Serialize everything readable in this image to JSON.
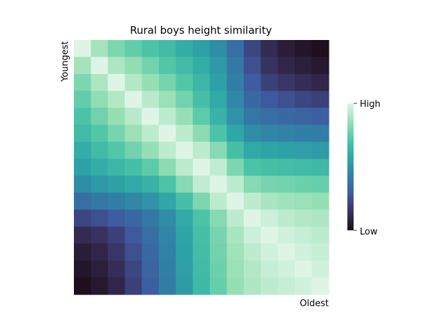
{
  "chart_data": {
    "type": "heatmap",
    "title": "Rural boys height similarity",
    "ylabel": "Youngest",
    "xlabel": "Oldest",
    "rows": 15,
    "cols": 15,
    "values": [
      [
        1.0,
        0.88,
        0.8,
        0.75,
        0.7,
        0.66,
        0.6,
        0.55,
        0.48,
        0.36,
        0.22,
        0.12,
        0.06,
        0.03,
        0.0
      ],
      [
        0.88,
        1.0,
        0.9,
        0.84,
        0.78,
        0.72,
        0.66,
        0.6,
        0.52,
        0.4,
        0.25,
        0.15,
        0.1,
        0.07,
        0.04
      ],
      [
        0.8,
        0.9,
        1.0,
        0.91,
        0.85,
        0.79,
        0.72,
        0.64,
        0.55,
        0.43,
        0.29,
        0.2,
        0.16,
        0.13,
        0.1
      ],
      [
        0.75,
        0.84,
        0.91,
        1.0,
        0.92,
        0.86,
        0.78,
        0.68,
        0.58,
        0.46,
        0.34,
        0.28,
        0.25,
        0.22,
        0.2
      ],
      [
        0.7,
        0.78,
        0.85,
        0.92,
        1.0,
        0.93,
        0.85,
        0.74,
        0.62,
        0.5,
        0.4,
        0.36,
        0.34,
        0.32,
        0.3
      ],
      [
        0.66,
        0.72,
        0.79,
        0.86,
        0.93,
        1.0,
        0.93,
        0.83,
        0.7,
        0.57,
        0.48,
        0.45,
        0.44,
        0.43,
        0.42
      ],
      [
        0.6,
        0.66,
        0.72,
        0.78,
        0.85,
        0.93,
        1.0,
        0.93,
        0.82,
        0.68,
        0.58,
        0.56,
        0.55,
        0.54,
        0.53
      ],
      [
        0.55,
        0.6,
        0.64,
        0.68,
        0.74,
        0.83,
        0.93,
        1.0,
        0.94,
        0.8,
        0.7,
        0.68,
        0.67,
        0.66,
        0.65
      ],
      [
        0.48,
        0.52,
        0.55,
        0.58,
        0.62,
        0.7,
        0.82,
        0.94,
        1.0,
        0.93,
        0.82,
        0.79,
        0.78,
        0.77,
        0.76
      ],
      [
        0.36,
        0.4,
        0.43,
        0.46,
        0.5,
        0.57,
        0.68,
        0.8,
        0.93,
        1.0,
        0.93,
        0.89,
        0.87,
        0.86,
        0.85
      ],
      [
        0.22,
        0.25,
        0.29,
        0.34,
        0.4,
        0.48,
        0.58,
        0.7,
        0.82,
        0.93,
        1.0,
        0.96,
        0.93,
        0.91,
        0.9
      ],
      [
        0.12,
        0.15,
        0.2,
        0.28,
        0.36,
        0.45,
        0.56,
        0.68,
        0.79,
        0.89,
        0.96,
        1.0,
        0.97,
        0.95,
        0.93
      ],
      [
        0.06,
        0.1,
        0.16,
        0.25,
        0.34,
        0.44,
        0.55,
        0.67,
        0.78,
        0.87,
        0.93,
        0.97,
        1.0,
        0.97,
        0.95
      ],
      [
        0.03,
        0.07,
        0.13,
        0.22,
        0.32,
        0.43,
        0.54,
        0.66,
        0.77,
        0.86,
        0.91,
        0.95,
        0.97,
        1.0,
        0.97
      ],
      [
        0.0,
        0.04,
        0.1,
        0.2,
        0.3,
        0.42,
        0.53,
        0.65,
        0.76,
        0.85,
        0.9,
        0.93,
        0.95,
        0.97,
        1.0
      ]
    ],
    "colorbar": {
      "high_label": "High",
      "low_label": "Low",
      "colormap": [
        "#1f0f1c",
        "#38305e",
        "#3e5ba0",
        "#317fa6",
        "#2ea7a7",
        "#4fc6a6",
        "#9ae0b6",
        "#def5e5"
      ]
    },
    "grid": false
  }
}
